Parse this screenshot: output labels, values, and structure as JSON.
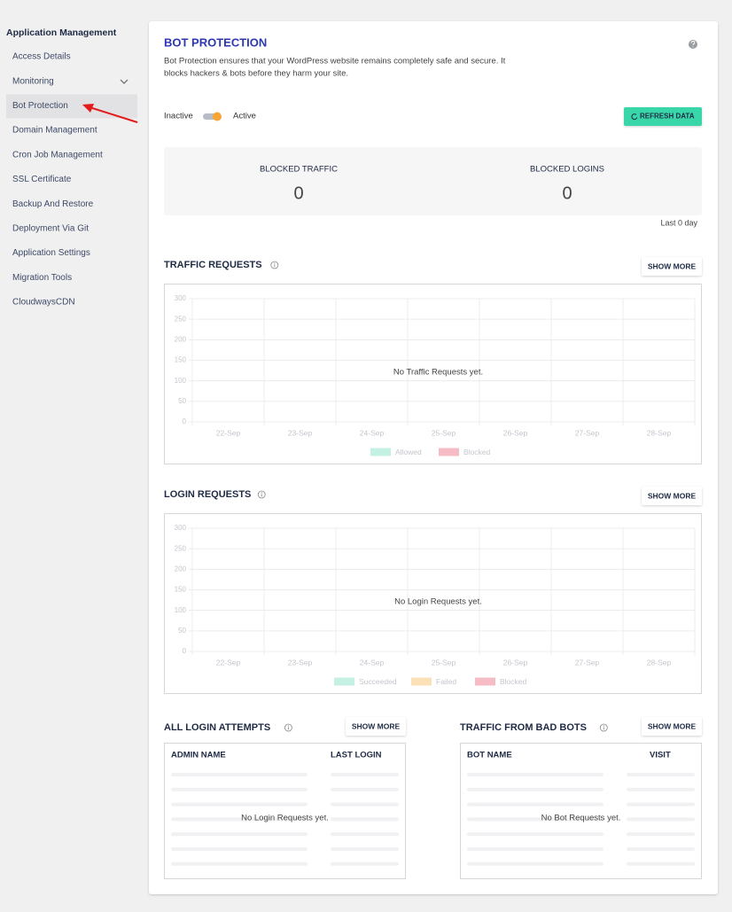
{
  "sidebar": {
    "heading": "Application Management",
    "items": [
      "Access Details",
      "Monitoring",
      "Bot Protection",
      "Domain Management",
      "Cron Job Management",
      "SSL Certificate",
      "Backup And Restore",
      "Deployment Via Git",
      "Application Settings",
      "Migration Tools",
      "CloudwaysCDN"
    ],
    "active": 2
  },
  "header": {
    "title": "BOT PROTECTION",
    "description_lines": [
      "Bot Protection ensures that your WordPress website remains completely safe and secure. It",
      "blocks hackers & bots before they harm your site."
    ]
  },
  "toggle": {
    "off_label": "Inactive",
    "on_label": "Active"
  },
  "refresh_button": "REFRESH DATA",
  "stats": [
    {
      "label": "BLOCKED TRAFFIC",
      "value": 0
    },
    {
      "label": "BLOCKED LOGINS",
      "value": 0
    }
  ],
  "period": "Last 0 day",
  "charts": [
    {
      "title": "TRAFFIC REQUESTS",
      "button": "SHOW MORE",
      "empty_message": "No Traffic Requests yet.",
      "ylim": [
        0,
        300
      ],
      "yticks": [
        0,
        50,
        100,
        150,
        200,
        250,
        300
      ],
      "categories": [
        "22-Sep",
        "23-Sep",
        "24-Sep",
        "25-Sep",
        "26-Sep",
        "27-Sep",
        "28-Sep"
      ],
      "legend": [
        {
          "name": "Allowed",
          "color": "#c4f1e3"
        },
        {
          "name": "Blocked",
          "color": "#f6bcc5"
        }
      ]
    },
    {
      "title": "LOGIN REQUESTS",
      "button": "SHOW MORE",
      "empty_message": "No Login Requests yet.",
      "ylim": [
        0,
        300
      ],
      "yticks": [
        0,
        50,
        100,
        150,
        200,
        250,
        300
      ],
      "categories": [
        "22-Sep",
        "23-Sep",
        "24-Sep",
        "25-Sep",
        "26-Sep",
        "27-Sep",
        "28-Sep"
      ],
      "legend": [
        {
          "name": "Succeeded",
          "color": "#c4f1e3"
        },
        {
          "name": "Failed",
          "color": "#fbe0b8"
        },
        {
          "name": "Blocked",
          "color": "#f6bcc5"
        }
      ]
    }
  ],
  "tables": [
    {
      "title": "ALL LOGIN ATTEMPTS",
      "button": "SHOW MORE",
      "columns": [
        "ADMIN NAME",
        "LAST LOGIN"
      ],
      "empty_message": "No Login Requests yet."
    },
    {
      "title": "TRAFFIC FROM BAD BOTS",
      "button": "SHOW MORE",
      "columns": [
        "BOT NAME",
        "VISIT"
      ],
      "empty_message": "No Bot Requests yet."
    }
  ]
}
